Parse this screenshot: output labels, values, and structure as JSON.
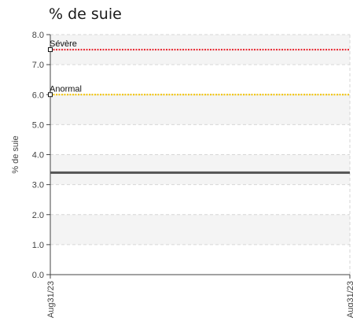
{
  "chart_data": {
    "type": "line",
    "title": "% de suie",
    "xlabel": "",
    "ylabel": "% de suie",
    "ylim": [
      0,
      8
    ],
    "yticks": [
      "0.0",
      "1.0",
      "2.0",
      "3.0",
      "4.0",
      "5.0",
      "6.0",
      "7.0",
      "8.0"
    ],
    "x": [
      "Aug31/23",
      "Aug31/23"
    ],
    "series": [
      {
        "values": [
          3.4,
          3.4
        ],
        "color": "#555555"
      }
    ],
    "reference_lines": [
      {
        "label": "Sévère",
        "value": 7.5,
        "color": "#e8212b"
      },
      {
        "label": "Anormal",
        "value": 6.0,
        "color": "#f2c200"
      }
    ],
    "grid": true,
    "band_colors": [
      "#f4f4f4",
      "#ffffff"
    ]
  }
}
